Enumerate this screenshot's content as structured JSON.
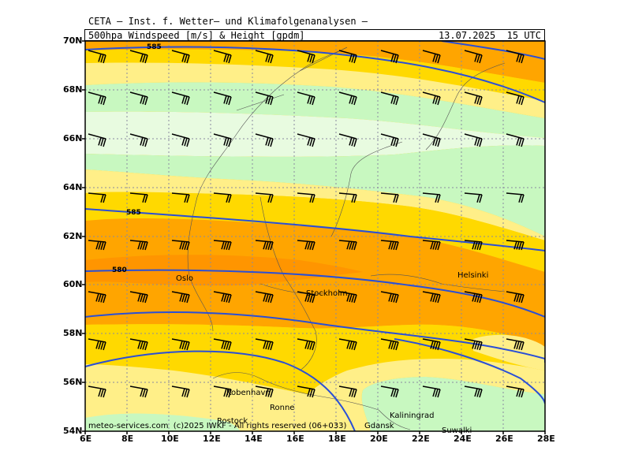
{
  "header": {
    "source_line": "CETA – Inst. f. Wetter– und Klimafolgenanalysen –",
    "product": "500hpa Windspeed [m/s] & Height [gpdm]",
    "valid_time": "13.07.2025  15 UTC"
  },
  "axes": {
    "lat_labels": [
      "70N",
      "68N",
      "66N",
      "64N",
      "62N",
      "60N",
      "58N",
      "56N",
      "54N"
    ],
    "lon_labels": [
      "6E",
      "8E",
      "10E",
      "12E",
      "14E",
      "16E",
      "18E",
      "20E",
      "22E",
      "24E",
      "26E",
      "28E"
    ]
  },
  "contour_labels": [
    "585",
    "585",
    "580"
  ],
  "cities": [
    "Oslo",
    "Stockholm",
    "Helsinki",
    "Kobenhavn",
    "Ronne",
    "Rostock",
    "Kaliningrad",
    "Gdansk",
    "Suwalki"
  ],
  "footer": {
    "copyright": "meteo-services.com  (c)2025 IWKF - All rights reserved (06+033)"
  },
  "colors": {
    "band_light_green": "#e8fbe0",
    "band_green": "#c8f8c0",
    "band_pale_yellow": "#ffef88",
    "band_yellow": "#ffd900",
    "band_orange": "#ffa500",
    "band_dark_orange": "#ff8c00",
    "band_red": "#ff5a30",
    "contour": "#2a4fd6"
  }
}
